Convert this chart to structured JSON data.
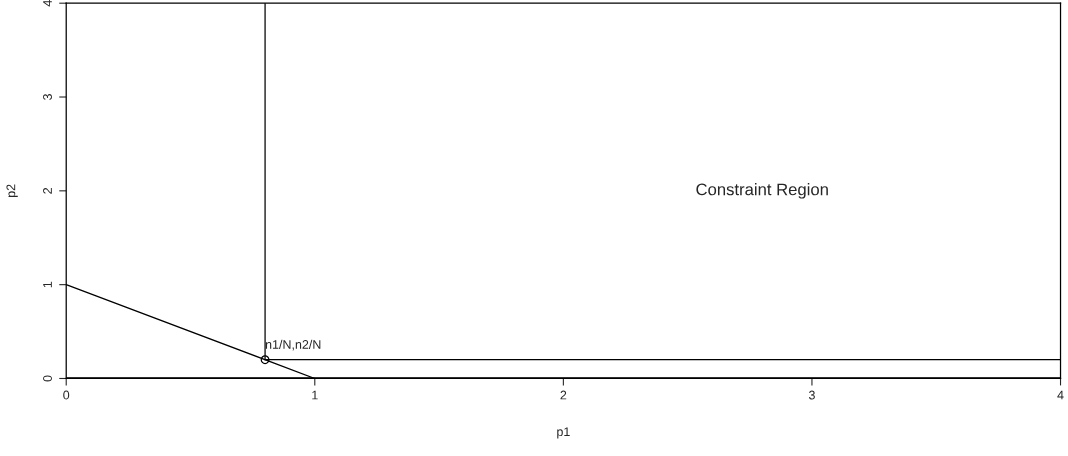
{
  "chart_data": {
    "type": "line",
    "xlabel": "p1",
    "ylabel": "p2",
    "xlim": [
      0,
      4
    ],
    "ylim": [
      0,
      4
    ],
    "xticks": [
      0,
      1,
      2,
      3,
      4
    ],
    "yticks": [
      0,
      1,
      2,
      3,
      4
    ],
    "grid": false,
    "legend": false,
    "series": [
      {
        "type": "line",
        "color": "#000000",
        "x": [
          0,
          1
        ],
        "values": [
          1,
          0
        ],
        "marker": "none"
      },
      {
        "type": "line",
        "color": "#000000",
        "x": [
          0.8,
          0.8
        ],
        "values": [
          0.2,
          4
        ],
        "marker": "none"
      },
      {
        "type": "line",
        "color": "#000000",
        "x": [
          0.8,
          4
        ],
        "values": [
          0.2,
          0.2
        ],
        "marker": "none"
      },
      {
        "type": "scatter",
        "color": "#000000",
        "x": [
          0.8
        ],
        "values": [
          0.2
        ],
        "marker": "circle"
      }
    ],
    "ref_lines": [
      {
        "axis": "y",
        "value": 0,
        "color": "#000000"
      }
    ],
    "annotations": [
      {
        "text": "n1/N,n2/N",
        "x": 0.8,
        "y": 0.2
      },
      "Constraint Region"
    ]
  }
}
